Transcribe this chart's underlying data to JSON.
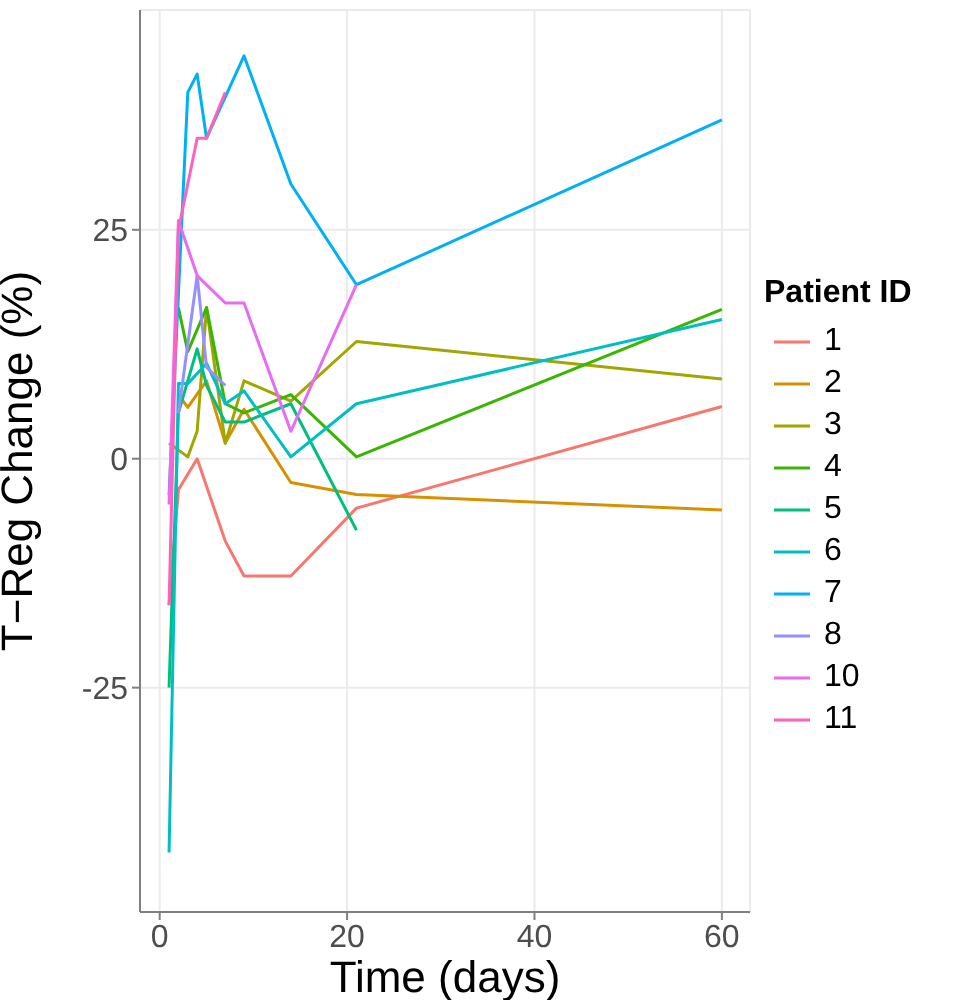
{
  "chart_data": {
    "type": "line",
    "xlabel": "Time (days)",
    "ylabel": "T−Reg Change (%)",
    "legend_title": "Patient ID",
    "legend": "right",
    "grid": true,
    "xlim": [
      -2.1,
      63
    ],
    "xticks": [
      0,
      20,
      40,
      60
    ],
    "ylim": [
      -49.5,
      49
    ],
    "yticks": [
      -25,
      0,
      25
    ],
    "series": [
      {
        "name": "1",
        "color": "#f8766d",
        "x": [
          1,
          2,
          4,
          7,
          9,
          14,
          21,
          60
        ],
        "values": [
          -16,
          -3.4,
          0,
          -9,
          -12.8,
          -12.8,
          -5.4,
          5.7
        ]
      },
      {
        "name": "2",
        "color": "#d89000",
        "x": [
          2,
          3,
          5,
          7,
          9,
          14,
          21,
          60
        ],
        "values": [
          7,
          5.6,
          8.5,
          1.7,
          5.4,
          -2.6,
          -3.9,
          -5.6
        ]
      },
      {
        "name": "3",
        "color": "#a3a500",
        "x": [
          1,
          3,
          4,
          5,
          7,
          9,
          14,
          21,
          60
        ],
        "values": [
          1.7,
          0.2,
          3,
          16.5,
          1.7,
          8.5,
          6.3,
          12.8,
          8.7
        ]
      },
      {
        "name": "4",
        "color": "#39b600",
        "x": [
          2,
          3,
          5,
          7,
          9,
          14,
          21,
          60
        ],
        "values": [
          16.5,
          11.7,
          16.5,
          6,
          5,
          7,
          0.2,
          16.3
        ]
      },
      {
        "name": "5",
        "color": "#00bf7d",
        "x": [
          1,
          2,
          4,
          5,
          7,
          9,
          14,
          21
        ],
        "values": [
          -25,
          5,
          12,
          8,
          4,
          4,
          6,
          -7.8
        ]
      },
      {
        "name": "6",
        "color": "#00bfc4",
        "x": [
          1,
          2,
          3,
          5,
          7,
          9,
          14,
          21,
          60
        ],
        "values": [
          -43,
          8.2,
          8.2,
          10.4,
          6,
          7.4,
          0.2,
          6,
          15.2
        ]
      },
      {
        "name": "7",
        "color": "#00b0f6",
        "x": [
          1,
          3,
          4,
          5,
          9,
          14,
          21,
          60
        ],
        "values": [
          -4,
          40,
          42,
          35,
          44,
          30,
          19,
          37
        ]
      },
      {
        "name": "8",
        "color": "#9590ff",
        "x": [
          2,
          4,
          5,
          7
        ],
        "values": [
          5,
          20,
          10,
          8
        ]
      },
      {
        "name": "10",
        "color": "#e76bf3",
        "x": [
          1,
          2,
          4,
          7,
          9,
          14,
          21
        ],
        "values": [
          -5,
          26,
          20,
          17,
          17,
          3,
          19
        ]
      },
      {
        "name": "11",
        "color": "#ff62bc",
        "x": [
          1,
          2,
          4,
          5,
          7
        ],
        "values": [
          -16,
          25,
          35,
          35,
          40
        ]
      }
    ]
  }
}
